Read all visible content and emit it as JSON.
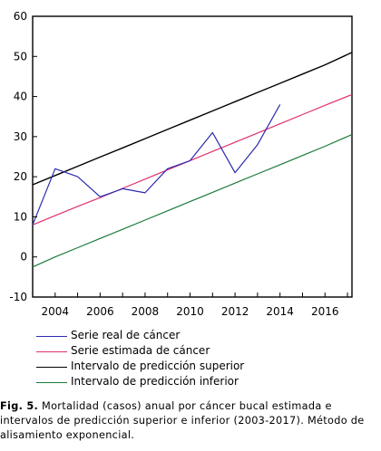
{
  "chart_data": {
    "type": "line",
    "x_ticks": [
      "2004",
      "2006",
      "2008",
      "2010",
      "2012",
      "2014",
      "2016"
    ],
    "y_ticks": [
      "60",
      "50",
      "40",
      "30",
      "20",
      "10",
      "0",
      "-10"
    ],
    "xlim": [
      2003,
      2017.2
    ],
    "ylim": [
      -10,
      60
    ],
    "grid": false,
    "legend_position": "bottom",
    "series": [
      {
        "name": "Serie real de cáncer",
        "color": "#2b2bb0",
        "x": [
          2003,
          2004,
          2005,
          2006,
          2007,
          2008,
          2009,
          2010,
          2011,
          2012,
          2013,
          2014
        ],
        "values": [
          8,
          22,
          20,
          15,
          17,
          16,
          22,
          24,
          31,
          21,
          28,
          38
        ]
      },
      {
        "name": "Serie estimada de cáncer",
        "color": "#e0306e",
        "x": [
          2003,
          2004,
          2005,
          2006,
          2007,
          2008,
          2009,
          2010,
          2011,
          2012,
          2013,
          2014,
          2015,
          2016,
          2017.2
        ],
        "values": [
          8,
          10.3,
          12.6,
          14.8,
          17.1,
          19.4,
          21.7,
          24,
          26.3,
          28.6,
          30.9,
          33.2,
          35.5,
          37.8,
          40.5
        ]
      },
      {
        "name": "Intervalo de predicción superior",
        "color": "#000000",
        "x": [
          2003,
          2004,
          2005,
          2006,
          2007,
          2008,
          2009,
          2010,
          2011,
          2012,
          2013,
          2014,
          2015,
          2016,
          2017.2
        ],
        "values": [
          18,
          20.3,
          22.6,
          24.9,
          27.2,
          29.5,
          31.8,
          34.1,
          36.4,
          38.7,
          41,
          43.3,
          45.6,
          47.9,
          51
        ]
      },
      {
        "name": "Intervalo de predicción inferior",
        "color": "#1a7a3a",
        "x": [
          2003,
          2004,
          2005,
          2006,
          2007,
          2008,
          2009,
          2010,
          2011,
          2012,
          2013,
          2014,
          2015,
          2016,
          2017.2
        ],
        "values": [
          -2.5,
          0,
          2.3,
          4.6,
          6.9,
          9.2,
          11.5,
          13.8,
          16.1,
          18.4,
          20.7,
          23,
          25.3,
          27.6,
          30.5
        ]
      }
    ]
  },
  "caption": {
    "label": "Fig. 5.",
    "text": " Mortalidad (casos) anual por cáncer bucal estimada e intervalos de predicción superior e inferior (2003-2017). Método de alisamiento exponencial."
  }
}
